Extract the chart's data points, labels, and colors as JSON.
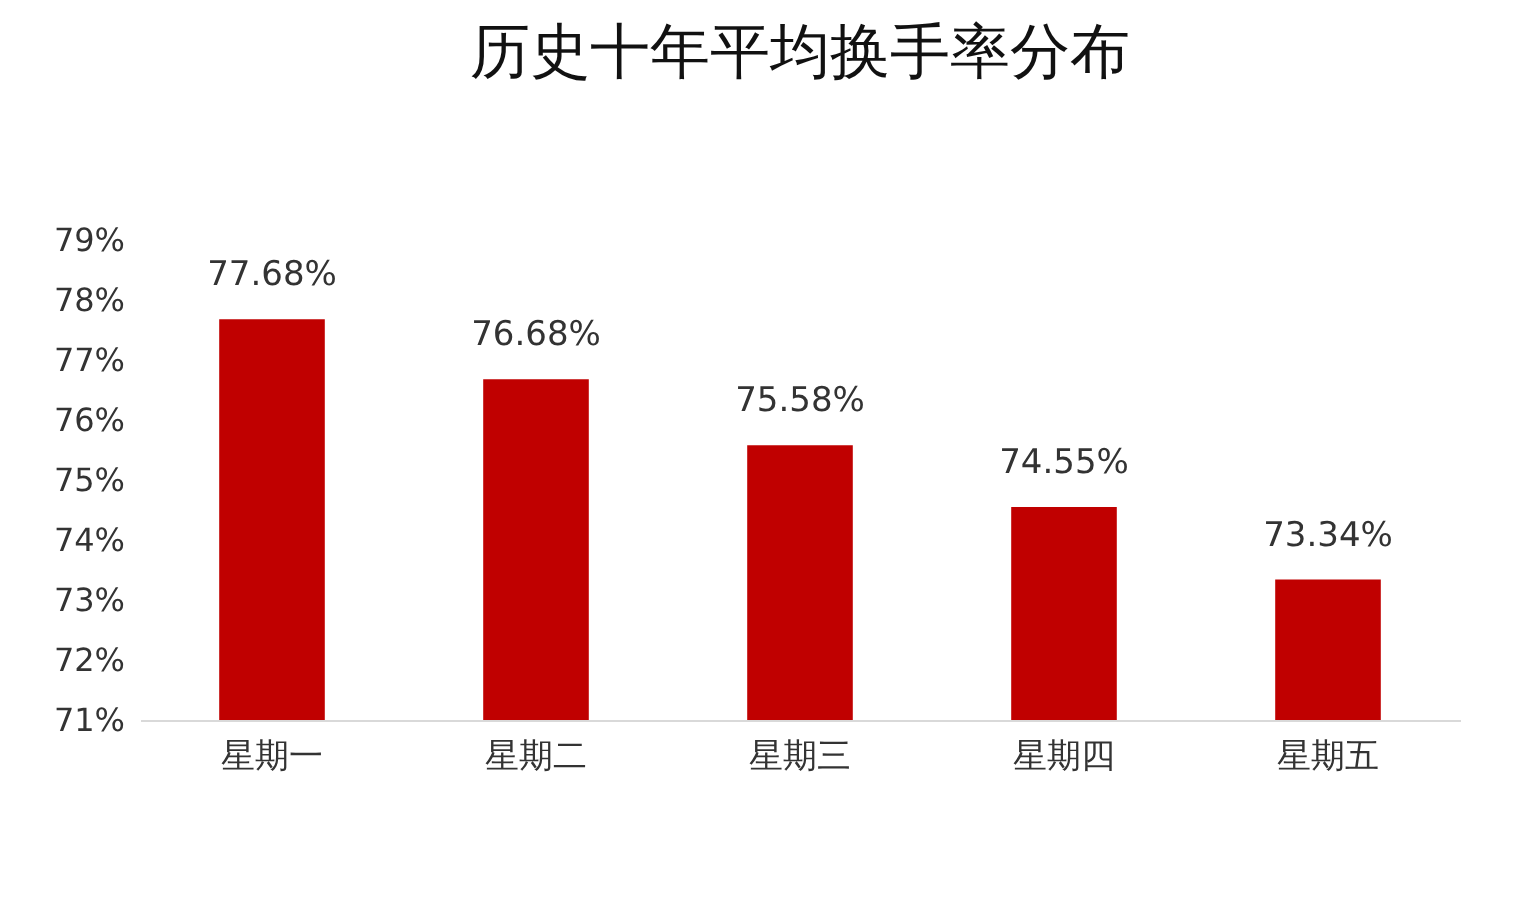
{
  "chart_data": {
    "type": "bar",
    "title": "历史十年平均换手率分布",
    "categories": [
      "星期一",
      "星期二",
      "星期三",
      "星期四",
      "星期五"
    ],
    "values": [
      77.68,
      76.68,
      75.58,
      74.55,
      73.34
    ],
    "value_labels": [
      "77.68%",
      "76.68%",
      "75.58%",
      "74.55%",
      "73.34%"
    ],
    "color": "#c00000",
    "ylim": [
      71,
      79
    ],
    "yticks": [
      {
        "value": 71,
        "label": "71%"
      },
      {
        "value": 72,
        "label": "72%"
      },
      {
        "value": 73,
        "label": "73%"
      },
      {
        "value": 74,
        "label": "74%"
      },
      {
        "value": 75,
        "label": "75%"
      },
      {
        "value": 76,
        "label": "76%"
      },
      {
        "value": 77,
        "label": "77%"
      },
      {
        "value": 78,
        "label": "78%"
      },
      {
        "value": 79,
        "label": "79%"
      }
    ],
    "grid": false
  }
}
